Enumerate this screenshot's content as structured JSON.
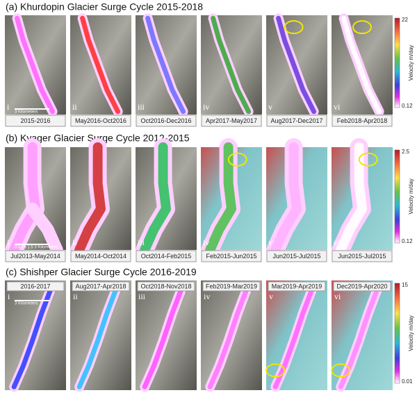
{
  "rows": [
    {
      "title": "(a) Khurdopin Glacier Surge Cycle 2015-2018",
      "scale_bar": "3 Kilometers",
      "colorbar": {
        "label": "Velocity m/day",
        "max": 22,
        "min": 0.12
      },
      "panels": [
        {
          "numeral": "i",
          "label": "2015-2016"
        },
        {
          "numeral": "ii",
          "label": "May2016-Oct2016"
        },
        {
          "numeral": "iii",
          "label": "Oct2016-Dec2016"
        },
        {
          "numeral": "iv",
          "label": "Apr2017-May2017"
        },
        {
          "numeral": "v",
          "label": "Aug2017-Dec2017"
        },
        {
          "numeral": "vi",
          "label": "Feb2018-Apr2018"
        }
      ]
    },
    {
      "title": "(b) Kyager Glacier Surge Cycle 2012-2015",
      "scale_bar": "0  0.75  1.5  3 Kilometers",
      "colorbar": {
        "label": "Velocity m/day",
        "max": 2.5,
        "min": 0.12
      },
      "panels": [
        {
          "numeral": "i",
          "label": "Jul2013-May2014"
        },
        {
          "numeral": "ii",
          "label": "May2014-Oct2014"
        },
        {
          "numeral": "iii",
          "label": "Oct2014-Feb2015"
        },
        {
          "numeral": "iv",
          "label": "Feb2015-Jun2015"
        },
        {
          "numeral": "v",
          "label": "Jun2015-Jul2015"
        },
        {
          "numeral": "vi",
          "label": "Jun2015-Jul2015"
        }
      ]
    },
    {
      "title": "(c) Shishper Glacier Surge Cycle 2016-2019",
      "scale_bar": "3 Kilometers",
      "colorbar": {
        "label": "Velocity m/day",
        "max": 15,
        "min": 0.01
      },
      "panels": [
        {
          "numeral": "i",
          "label": "2016-2017"
        },
        {
          "numeral": "ii",
          "label": "Aug2017-Apr2018"
        },
        {
          "numeral": "iii",
          "label": "Oct2018-Nov2018"
        },
        {
          "numeral": "iv",
          "label": "Feb2019-Mar2019"
        },
        {
          "numeral": "v",
          "label": "Mar2019-Apr2019"
        },
        {
          "numeral": "vi",
          "label": "Dec2019-Apr2020"
        }
      ]
    }
  ]
}
